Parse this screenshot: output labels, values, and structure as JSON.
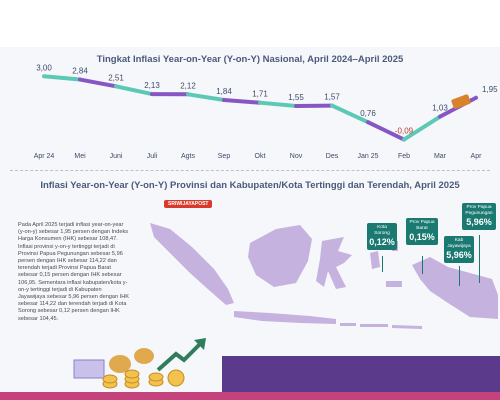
{
  "chart_data": [
    {
      "type": "line",
      "title": "Tingkat Inflasi Year-on-Year (Y-on-Y) Nasional, April 2024–April 2025",
      "categories": [
        "Apr 24",
        "Mei",
        "Juni",
        "Juli",
        "Agts",
        "Sep",
        "Okt",
        "Nov",
        "Des",
        "Jan 25",
        "Feb",
        "Mar",
        "Apr"
      ],
      "values": [
        3.0,
        2.84,
        2.51,
        2.13,
        2.12,
        1.84,
        1.71,
        1.55,
        1.57,
        0.76,
        -0.09,
        1.03,
        1.95
      ],
      "value_labels": [
        "3,00",
        "2,84",
        "2,51",
        "2,13",
        "2,12",
        "1,84",
        "1,71",
        "1,55",
        "1,57",
        "0,76",
        "-0,09",
        "1,03",
        "1,95"
      ],
      "ylim": [
        -0.5,
        3.5
      ],
      "grid": false
    },
    {
      "type": "map",
      "title": "Inflasi Year-on-Year (Y-on-Y) Provinsi dan Kabupaten/Kota Tertinggi dan Terendah, April 2025",
      "callouts": [
        {
          "label": "Kota Sorong",
          "value": "0,12%"
        },
        {
          "label": "Prov Papua Barat",
          "value": "0,15%"
        },
        {
          "label": "Kab Jayawijaya",
          "value": "5,96%"
        },
        {
          "label": "Prov Papua Pegunungan",
          "value": "5,96%"
        }
      ]
    }
  ],
  "logo_text": "SRIWIJAYAPOST",
  "paragraph": "Pada April 2025 terjadi inflasi year-on-year (y-on-y) sebesar 1,95 persen dengan Indeks Harga Konsumen (IHK) sebesar 108,47. Inflasi provinsi y-on-y tertinggi terjadi di Provinsi Papua Pegunungan sebesar 5,96 persen dengan IHK sebesar 114,22 dan terendah terjadi Provinsi Papua Barat sebesar 0,15 persen dengan IHK sebesar 106,95. Sementara inflasi kabupaten/kota y-on-y tertinggi terjadi di Kabupaten Jayawijaya sebesar 5,96 persen dengan IHK sebesar 114,22 dan terendah terjadi di Kota Sorong sebesar 0,12 persen dengan IHK sebesar 104,45.",
  "colors": {
    "teal": "#5cc9b5",
    "purple": "#8856c4",
    "map": "#c6b2de",
    "callout": "#1a7a72"
  }
}
